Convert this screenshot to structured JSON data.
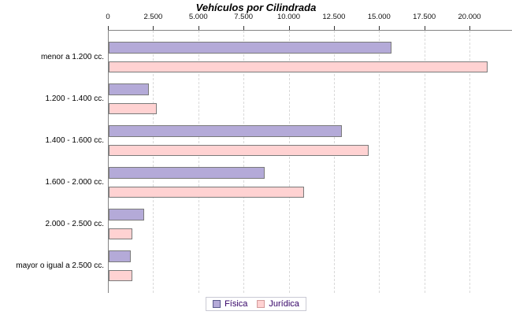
{
  "chart_data": {
    "type": "bar",
    "orientation": "horizontal",
    "title": "Vehículos por Cilindrada",
    "categories": [
      "menor a 1.200 cc.",
      "1.200 - 1.400 cc.",
      "1.400 - 1.600 cc.",
      "1.600 - 2.000 cc.",
      "2.000 - 2.500 cc.",
      "mayor o igual a 2.500 cc."
    ],
    "series": [
      {
        "name": "Física",
        "color": "#b4aad8",
        "bar_border": "#7a7a7a",
        "swatch_border": "#5a5a8c",
        "values": [
          15700,
          2270,
          12950,
          8650,
          2000,
          1270
        ]
      },
      {
        "name": "Jurídica",
        "color": "#ffd2d2",
        "bar_border": "#7a7a7a",
        "swatch_border": "#d29a9a",
        "values": [
          21000,
          2700,
          14400,
          10870,
          1330,
          1330
        ]
      }
    ],
    "value_axis": {
      "position": "top",
      "min": 0,
      "max": 22350,
      "grid": "dashed-vertical",
      "ticks": [
        {
          "value": 0,
          "label": "0"
        },
        {
          "value": 2500,
          "label": "2.500"
        },
        {
          "value": 5000,
          "label": "5.000"
        },
        {
          "value": 7500,
          "label": "7.500"
        },
        {
          "value": 10000,
          "label": "10.000"
        },
        {
          "value": 12500,
          "label": "12.500"
        },
        {
          "value": 15000,
          "label": "15.000"
        },
        {
          "value": 17500,
          "label": "17.500"
        },
        {
          "value": 20000,
          "label": "20.000"
        }
      ]
    },
    "legend": {
      "position": "bottom",
      "text_color": "#330066"
    },
    "style": {
      "background": "#ffffff",
      "axis_color": "#848484",
      "grid_color": "#d9d9d9",
      "title_color": "#000000"
    }
  }
}
